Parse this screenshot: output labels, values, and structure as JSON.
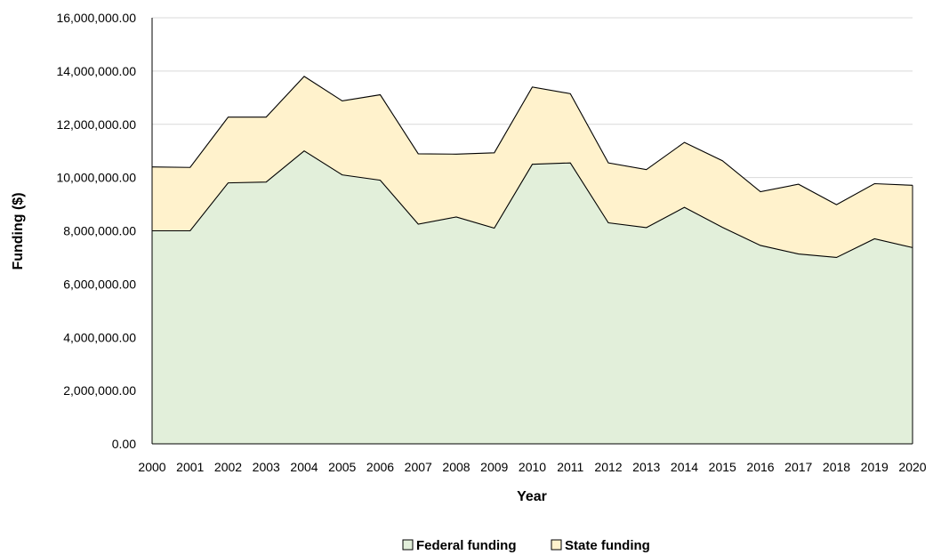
{
  "chart_data": {
    "type": "area",
    "stacked": true,
    "title": "",
    "xlabel": "Year",
    "ylabel": "Funding ($)",
    "ylim": [
      0,
      16000000
    ],
    "y_ticks": [
      0,
      2000000,
      4000000,
      6000000,
      8000000,
      10000000,
      12000000,
      14000000,
      16000000
    ],
    "y_tick_labels": [
      "0.00",
      "2,000,000.00",
      "4,000,000.00",
      "6,000,000.00",
      "8,000,000.00",
      "10,000,000.00",
      "12,000,000.00",
      "14,000,000.00",
      "16,000,000.00"
    ],
    "grid": true,
    "legend_position": "bottom",
    "categories": [
      "2000",
      "2001",
      "2002",
      "2003",
      "2004",
      "2005",
      "2006",
      "2007",
      "2008",
      "2009",
      "2010",
      "2011",
      "2012",
      "2013",
      "2014",
      "2015",
      "2016",
      "2017",
      "2018",
      "2019",
      "2020"
    ],
    "series": [
      {
        "name": "Federal funding",
        "color": "#e2efda",
        "values": [
          8000000,
          8000000,
          9800000,
          9830000,
          11000000,
          10100000,
          9900000,
          8250000,
          8520000,
          8100000,
          10500000,
          10550000,
          8300000,
          8120000,
          8880000,
          8130000,
          7450000,
          7130000,
          7000000,
          7700000,
          7370000
        ]
      },
      {
        "name": "State funding",
        "color": "#fff2cc",
        "values": [
          2400000,
          2380000,
          2470000,
          2440000,
          2800000,
          2780000,
          3210000,
          2640000,
          2360000,
          2830000,
          2900000,
          2600000,
          2250000,
          2180000,
          2440000,
          2500000,
          2020000,
          2620000,
          1980000,
          2070000,
          2340000
        ]
      }
    ]
  }
}
